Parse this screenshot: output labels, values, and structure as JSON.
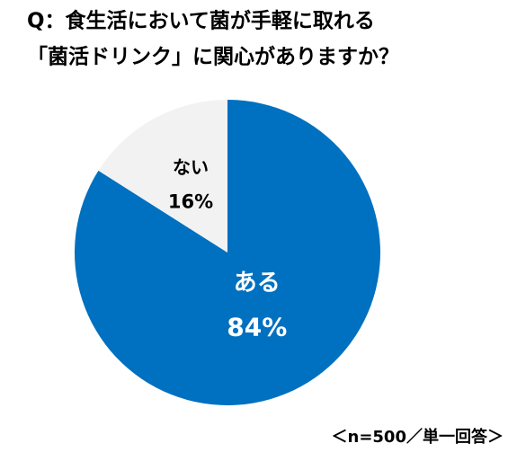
{
  "chart_data": {
    "type": "pie",
    "title": [
      "Q：食生活において菌が手軽に取れる",
      "「菌活ドリンク」に関心がありますか？"
    ],
    "categories": [
      "ある",
      "ない"
    ],
    "values": [
      84,
      16
    ],
    "value_labels": [
      "84%",
      "16%"
    ],
    "colors": [
      "#0070c0",
      "#f2f2f2"
    ],
    "note": "＜n=500／単一回答＞"
  }
}
